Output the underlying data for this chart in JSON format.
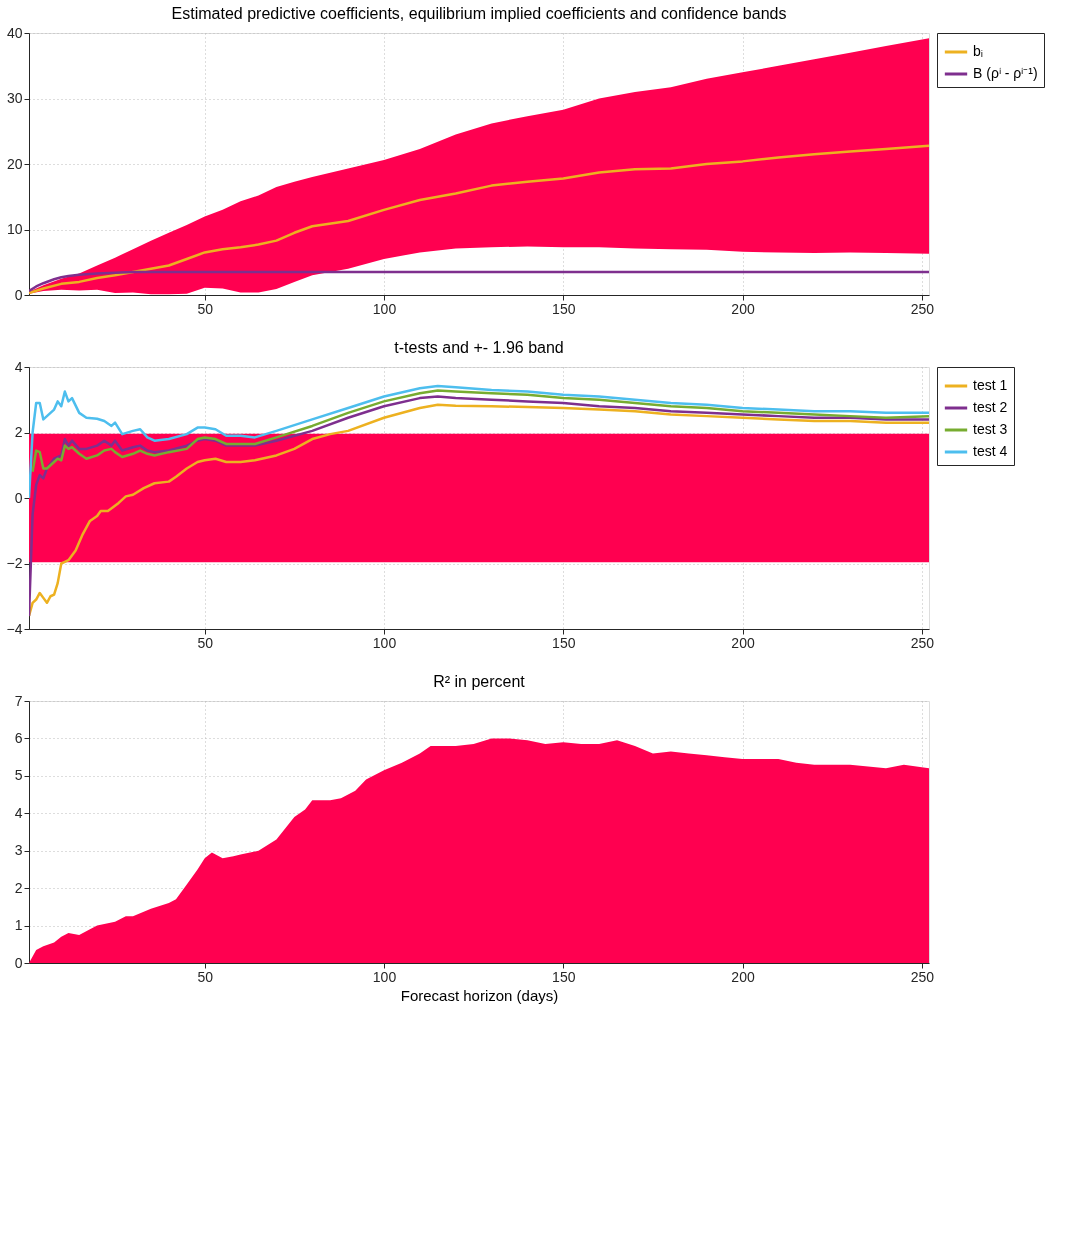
{
  "chart_data": [
    {
      "type": "line",
      "title": "Estimated predictive coefficients, equilibrium implied coefficients and confidence bands",
      "xlim": [
        1,
        252
      ],
      "xticks": [
        50,
        100,
        150,
        200,
        250
      ],
      "ylim": [
        0,
        40
      ],
      "yticks": [
        0,
        10,
        20,
        30,
        40
      ],
      "grid": true,
      "legend": "top right",
      "tick_labels": true,
      "series": [
        {
          "name": "bᵢ",
          "color": "#edb120",
          "x": [
            1,
            5,
            10,
            15,
            20,
            25,
            30,
            35,
            40,
            45,
            50,
            55,
            60,
            65,
            70,
            75,
            80,
            90,
            100,
            110,
            120,
            130,
            140,
            150,
            160,
            170,
            180,
            190,
            200,
            210,
            220,
            230,
            240,
            252
          ],
          "values": [
            0.3,
            1.0,
            1.7,
            2.0,
            2.6,
            3.0,
            3.5,
            4.0,
            4.5,
            5.5,
            6.5,
            7,
            7.3,
            7.7,
            8.3,
            9.5,
            10.5,
            11.3,
            13,
            14.5,
            15.5,
            16.7,
            17.3,
            17.8,
            18.7,
            19.2,
            19.3,
            20,
            20.4,
            21,
            21.5,
            21.9,
            22.3,
            22.8
          ],
          "lower": [
            0.2,
            0.6,
            0.8,
            0.7,
            0.8,
            0.3,
            0.4,
            0.1,
            0.1,
            0.2,
            1.1,
            1.0,
            0.4,
            0.4,
            0.9,
            2.0,
            3.0,
            4.0,
            5.5,
            6.5,
            7.1,
            7.3,
            7.4,
            7.3,
            7.3,
            7.1,
            7.0,
            6.9,
            6.6,
            6.5,
            6.4,
            6.5,
            6.4,
            6.3
          ],
          "upper": [
            0.5,
            1.5,
            2.5,
            3.3,
            4.5,
            5.7,
            7,
            8.3,
            9.5,
            10.7,
            12,
            13,
            14.3,
            15.2,
            16.5,
            17.3,
            18,
            19.3,
            20.6,
            22.3,
            24.5,
            26.2,
            27.3,
            28.3,
            30,
            31,
            31.7,
            33,
            34,
            35,
            36,
            37,
            38,
            39.2
          ]
        },
        {
          "name": "B (ρⁱ - ρⁱ⁻¹)",
          "color": "#7e2f8e",
          "x": [
            1,
            3,
            5,
            8,
            10,
            12,
            15,
            20,
            25,
            30,
            40,
            252
          ],
          "values": [
            0.6,
            1.3,
            1.8,
            2.4,
            2.7,
            2.9,
            3.1,
            3.3,
            3.4,
            3.5,
            3.5,
            3.5
          ]
        }
      ]
    },
    {
      "type": "line",
      "title": "t-tests and +- 1.96 band",
      "xlim": [
        1,
        252
      ],
      "xticks": [
        50,
        100,
        150,
        200,
        250
      ],
      "ylim": [
        -4,
        4
      ],
      "yticks": [
        -4,
        -2,
        0,
        2,
        4
      ],
      "grid": true,
      "legend": "top right",
      "tick_labels": true,
      "bands": [
        {
          "axis": "y",
          "from": -1.96,
          "to": 1.96,
          "color": "#ff0050"
        }
      ],
      "series": [
        {
          "name": "test 1",
          "color": "#edb120",
          "x": [
            1,
            2,
            3,
            4,
            5,
            6,
            7,
            8,
            9,
            10,
            11,
            12,
            14,
            16,
            18,
            20,
            21,
            23,
            26,
            28,
            30,
            33,
            36,
            40,
            42,
            45,
            48,
            50,
            53,
            56,
            60,
            64,
            70,
            75,
            80,
            85,
            90,
            100,
            110,
            115,
            120,
            130,
            140,
            150,
            160,
            170,
            180,
            190,
            200,
            210,
            220,
            230,
            240,
            252
          ],
          "values": [
            -3.6,
            -3.2,
            -3.1,
            -2.9,
            -3.05,
            -3.2,
            -3.0,
            -2.95,
            -2.6,
            -2.0,
            -1.95,
            -1.9,
            -1.6,
            -1.1,
            -0.7,
            -0.55,
            -0.4,
            -0.4,
            -0.15,
            0.05,
            0.1,
            0.3,
            0.45,
            0.5,
            0.65,
            0.9,
            1.1,
            1.15,
            1.2,
            1.1,
            1.1,
            1.15,
            1.3,
            1.5,
            1.8,
            1.95,
            2.05,
            2.45,
            2.75,
            2.85,
            2.82,
            2.8,
            2.78,
            2.75,
            2.7,
            2.65,
            2.55,
            2.5,
            2.45,
            2.4,
            2.35,
            2.35,
            2.3,
            2.3
          ]
        },
        {
          "name": "test 2",
          "color": "#7e2f8e",
          "x": [
            1,
            2,
            3,
            4,
            5,
            6,
            8,
            10,
            11,
            12,
            13,
            15,
            17,
            20,
            22,
            24,
            25,
            27,
            30,
            32,
            34,
            36,
            40,
            45,
            48,
            50,
            53,
            56,
            60,
            64,
            70,
            80,
            90,
            100,
            110,
            115,
            120,
            130,
            140,
            150,
            160,
            170,
            180,
            190,
            200,
            210,
            220,
            230,
            240,
            252
          ],
          "values": [
            -3.6,
            -0.5,
            0.4,
            0.7,
            0.6,
            0.9,
            1.2,
            1.3,
            1.8,
            1.6,
            1.75,
            1.5,
            1.5,
            1.6,
            1.75,
            1.6,
            1.75,
            1.45,
            1.55,
            1.6,
            1.45,
            1.4,
            1.45,
            1.6,
            1.75,
            1.8,
            1.75,
            1.6,
            1.6,
            1.6,
            1.75,
            2.05,
            2.45,
            2.8,
            3.05,
            3.1,
            3.05,
            3.0,
            2.95,
            2.9,
            2.8,
            2.75,
            2.65,
            2.6,
            2.55,
            2.5,
            2.45,
            2.45,
            2.4,
            2.4
          ]
        },
        {
          "name": "test 3",
          "color": "#77ac30",
          "x": [
            2,
            3,
            4,
            5,
            6,
            8,
            9,
            10,
            11,
            12,
            13,
            15,
            17,
            20,
            22,
            24,
            25,
            27,
            30,
            32,
            34,
            36,
            40,
            45,
            48,
            50,
            53,
            56,
            60,
            64,
            70,
            80,
            90,
            100,
            110,
            115,
            120,
            130,
            140,
            150,
            160,
            170,
            180,
            190,
            200,
            210,
            220,
            230,
            240,
            252
          ],
          "values": [
            0.8,
            1.45,
            1.4,
            0.9,
            0.9,
            1.1,
            1.2,
            1.15,
            1.6,
            1.5,
            1.55,
            1.35,
            1.2,
            1.3,
            1.45,
            1.5,
            1.4,
            1.25,
            1.35,
            1.45,
            1.35,
            1.3,
            1.4,
            1.5,
            1.8,
            1.85,
            1.8,
            1.65,
            1.65,
            1.65,
            1.85,
            2.2,
            2.6,
            2.95,
            3.2,
            3.28,
            3.25,
            3.2,
            3.15,
            3.05,
            3.0,
            2.9,
            2.8,
            2.75,
            2.65,
            2.6,
            2.55,
            2.5,
            2.45,
            2.5
          ]
        },
        {
          "name": "test 4",
          "color": "#4dbeee",
          "x": [
            1,
            2,
            3,
            4,
            5,
            7,
            8,
            9,
            10,
            11,
            12,
            13,
            15,
            17,
            20,
            22,
            24,
            25,
            27,
            30,
            32,
            34,
            36,
            40,
            45,
            48,
            50,
            53,
            56,
            60,
            64,
            70,
            80,
            90,
            100,
            110,
            115,
            120,
            130,
            140,
            150,
            160,
            170,
            180,
            190,
            200,
            210,
            220,
            230,
            240,
            252
          ],
          "values": [
            0,
            2.0,
            2.9,
            2.9,
            2.4,
            2.6,
            2.7,
            2.95,
            2.8,
            3.25,
            2.95,
            3.05,
            2.6,
            2.45,
            2.42,
            2.35,
            2.2,
            2.3,
            1.95,
            2.05,
            2.1,
            1.85,
            1.75,
            1.8,
            1.95,
            2.15,
            2.15,
            2.1,
            1.9,
            1.9,
            1.85,
            2.05,
            2.4,
            2.75,
            3.1,
            3.35,
            3.42,
            3.38,
            3.3,
            3.25,
            3.15,
            3.1,
            3.0,
            2.9,
            2.85,
            2.75,
            2.7,
            2.65,
            2.65,
            2.6,
            2.6
          ]
        }
      ]
    },
    {
      "type": "area",
      "title": "R² in percent",
      "xlabel": "Forecast horizon (days)",
      "xlim": [
        1,
        252
      ],
      "xticks": [
        50,
        100,
        150,
        200,
        250
      ],
      "ylim": [
        0,
        7
      ],
      "yticks": [
        0,
        1,
        2,
        3,
        4,
        5,
        6,
        7
      ],
      "grid": true,
      "tick_labels": true,
      "series": [
        {
          "color": "#ff0050",
          "x": [
            1,
            3,
            5,
            8,
            10,
            12,
            15,
            18,
            20,
            25,
            28,
            30,
            35,
            40,
            42,
            45,
            48,
            50,
            52,
            55,
            58,
            60,
            65,
            70,
            75,
            78,
            80,
            85,
            88,
            92,
            95,
            100,
            105,
            110,
            113,
            120,
            125,
            130,
            135,
            140,
            145,
            150,
            155,
            160,
            165,
            170,
            175,
            180,
            185,
            190,
            195,
            200,
            210,
            215,
            220,
            230,
            235,
            240,
            245,
            252
          ],
          "values": [
            0,
            0.35,
            0.45,
            0.55,
            0.7,
            0.8,
            0.75,
            0.9,
            1.0,
            1.1,
            1.25,
            1.25,
            1.45,
            1.6,
            1.7,
            2.1,
            2.5,
            2.8,
            2.95,
            2.8,
            2.85,
            2.9,
            3.0,
            3.3,
            3.9,
            4.1,
            4.35,
            4.35,
            4.4,
            4.6,
            4.9,
            5.15,
            5.35,
            5.6,
            5.8,
            5.8,
            5.85,
            6.0,
            6.0,
            5.95,
            5.85,
            5.9,
            5.85,
            5.85,
            5.95,
            5.8,
            5.6,
            5.65,
            5.6,
            5.55,
            5.5,
            5.45,
            5.45,
            5.35,
            5.3,
            5.3,
            5.25,
            5.2,
            5.3,
            5.2
          ]
        }
      ]
    }
  ]
}
